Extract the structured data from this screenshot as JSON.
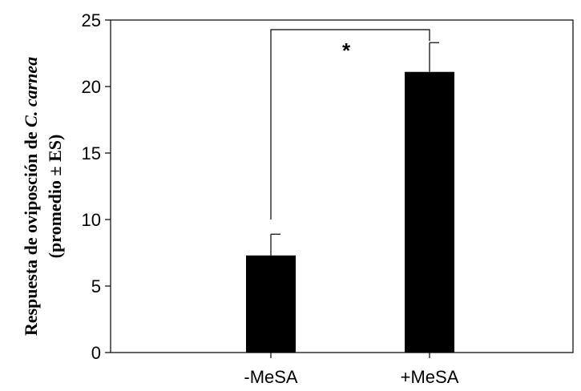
{
  "chart_data": {
    "type": "bar",
    "categories": [
      "-MeSA",
      "+MeSA"
    ],
    "values": [
      7.3,
      21.1
    ],
    "error_upper": [
      8.9,
      23.3
    ],
    "ylabel_line1_prefix": "Respuesta de oviposción de ",
    "ylabel_line1_species": "C. carnea",
    "ylabel_line2": "(promedio ± ES)",
    "ylim": [
      0,
      25
    ],
    "yticks": [
      0,
      5,
      10,
      15,
      20,
      25
    ],
    "grid": false,
    "bar_color": "#000000",
    "significance": {
      "between": [
        "-MeSA",
        "+MeSA"
      ],
      "label": "*"
    }
  }
}
